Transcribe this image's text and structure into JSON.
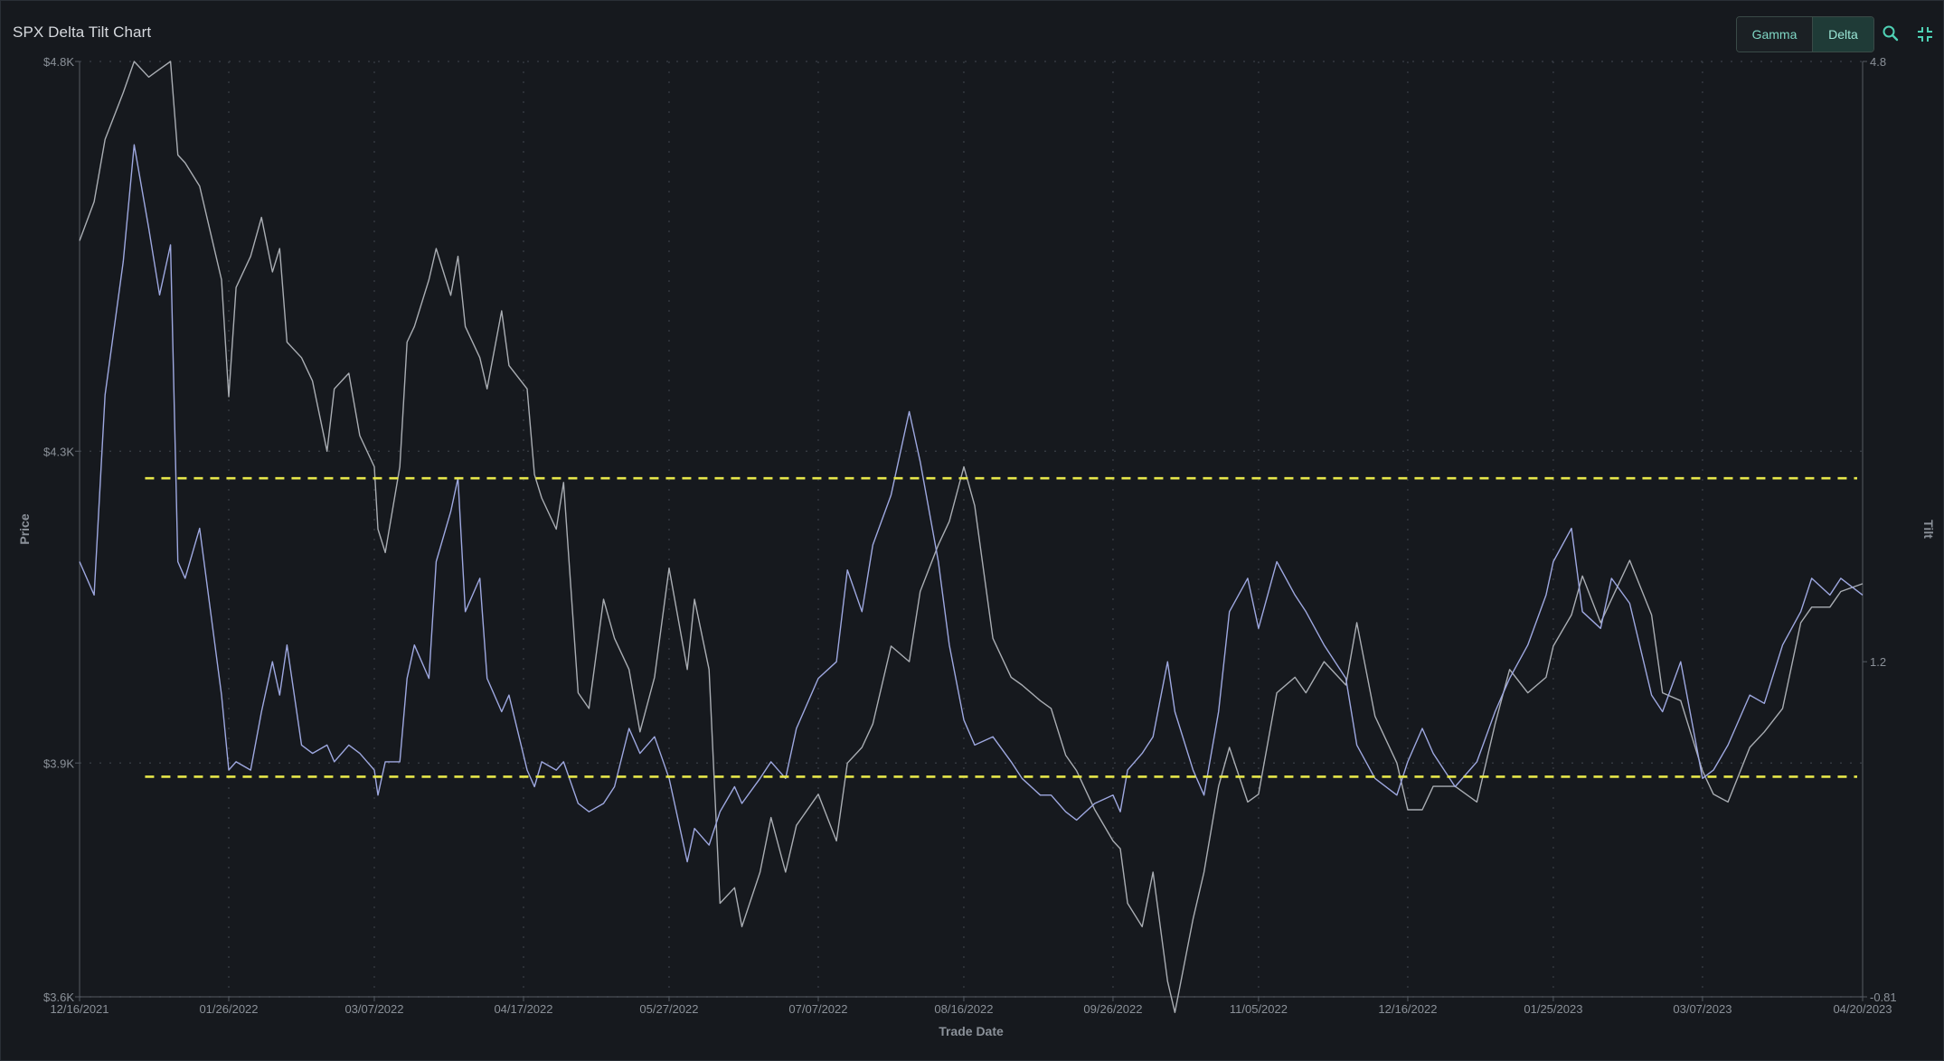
{
  "window": {
    "title": "SPX Delta Tilt Chart"
  },
  "toolbar": {
    "gamma_label": "Gamma",
    "delta_label": "Delta",
    "active": "Delta",
    "search_icon": "search-icon",
    "collapse_icon": "collapse-icon"
  },
  "colors": {
    "price_line": "#a9adb3",
    "tilt_line": "#9ea8e0",
    "threshold": "#e6e64a",
    "accent": "#4fd1b5"
  },
  "chart_data": {
    "type": "line",
    "title": "SPX Delta Tilt Chart",
    "xlabel": "Trade Date",
    "ylabel": "Price",
    "y2label": "Tilt",
    "x_tick_labels": [
      "12/16/2021",
      "01/26/2022",
      "03/07/2022",
      "04/17/2022",
      "05/27/2022",
      "07/07/2022",
      "08/16/2022",
      "09/26/2022",
      "11/05/2022",
      "12/16/2022",
      "01/25/2023",
      "03/07/2023",
      "04/20/2023"
    ],
    "y_tick_labels": [
      "$4.8K",
      "$4.3K",
      "$3.9K",
      "$3.6K"
    ],
    "y_tick_values": [
      4800,
      4300,
      3900,
      3600
    ],
    "y2_tick_labels": [
      "4.8",
      "1.2",
      "-0.81"
    ],
    "y2_tick_values": [
      4.8,
      1.2,
      -0.81
    ],
    "ylim": [
      3600,
      4800
    ],
    "y2lim": [
      -0.81,
      4.8
    ],
    "grid": true,
    "grid_style": "dotted",
    "thresholds": [
      {
        "axis": "y2",
        "value": 2.3,
        "style": "dashed"
      },
      {
        "axis": "y2",
        "value": 0.51,
        "style": "dashed"
      }
    ],
    "series": [
      {
        "axis": "y",
        "x": [
          "12/16/2021",
          "12/20/2021",
          "12/23/2021",
          "12/28/2021",
          "12/31/2021",
          "01/04/2022",
          "01/07/2022",
          "01/10/2022",
          "01/12/2022",
          "01/14/2022",
          "01/18/2022",
          "01/21/2022",
          "01/24/2022",
          "01/26/2022",
          "01/28/2022",
          "02/01/2022",
          "02/04/2022",
          "02/07/2022",
          "02/09/2022",
          "02/11/2022",
          "02/15/2022",
          "02/18/2022",
          "02/22/2022",
          "02/24/2022",
          "02/28/2022",
          "03/03/2022",
          "03/07/2022",
          "03/08/2022",
          "03/10/2022",
          "03/14/2022",
          "03/16/2022",
          "03/18/2022",
          "03/22/2022",
          "03/24/2022",
          "03/28/2022",
          "03/30/2022",
          "04/01/2022",
          "04/05/2022",
          "04/07/2022",
          "04/11/2022",
          "04/13/2022",
          "04/18/2022",
          "04/20/2022",
          "04/22/2022",
          "04/26/2022",
          "04/28/2022",
          "05/02/2022",
          "05/05/2022",
          "05/09/2022",
          "05/12/2022",
          "05/16/2022",
          "05/19/2022",
          "05/23/2022",
          "05/27/2022",
          "06/01/2022",
          "06/03/2022",
          "06/07/2022",
          "06/10/2022",
          "06/14/2022",
          "06/16/2022",
          "06/21/2022",
          "06/24/2022",
          "06/28/2022",
          "07/01/2022",
          "07/07/2022",
          "07/12/2022",
          "07/15/2022",
          "07/19/2022",
          "07/22/2022",
          "07/27/2022",
          "08/01/2022",
          "08/04/2022",
          "08/09/2022",
          "08/12/2022",
          "08/16/2022",
          "08/19/2022",
          "08/24/2022",
          "08/29/2022",
          "09/01/2022",
          "09/06/2022",
          "09/09/2022",
          "09/13/2022",
          "09/16/2022",
          "09/21/2022",
          "09/26/2022",
          "09/28/2022",
          "09/30/2022",
          "10/04/2022",
          "10/07/2022",
          "10/11/2022",
          "10/13/2022",
          "10/18/2022",
          "10/21/2022",
          "10/25/2022",
          "10/28/2022",
          "11/02/2022",
          "11/05/2022",
          "11/10/2022",
          "11/15/2022",
          "11/18/2022",
          "11/23/2022",
          "11/29/2022",
          "12/02/2022",
          "12/07/2022",
          "12/13/2022",
          "12/16/2022",
          "12/20/2022",
          "12/23/2022",
          "12/29/2022",
          "01/04/2023",
          "01/09/2023",
          "01/13/2023",
          "01/18/2023",
          "01/23/2023",
          "01/25/2023",
          "01/30/2023",
          "02/02/2023",
          "02/07/2023",
          "02/10/2023",
          "02/15/2023",
          "02/21/2023",
          "02/24/2023",
          "03/01/2023",
          "03/07/2023",
          "03/10/2023",
          "03/14/2023",
          "03/20/2023",
          "03/24/2023",
          "03/29/2023",
          "04/03/2023",
          "04/06/2023",
          "04/11/2023",
          "04/14/2023",
          "04/20/2023"
        ],
        "y": [
          4570,
          4620,
          4700,
          4760,
          4800,
          4780,
          4790,
          4800,
          4680,
          4670,
          4640,
          4580,
          4520,
          4370,
          4510,
          4550,
          4600,
          4530,
          4560,
          4440,
          4420,
          4390,
          4300,
          4380,
          4400,
          4320,
          4280,
          4200,
          4170,
          4280,
          4440,
          4460,
          4520,
          4560,
          4500,
          4550,
          4460,
          4420,
          4380,
          4480,
          4410,
          4380,
          4270,
          4240,
          4200,
          4260,
          3990,
          3970,
          4110,
          4060,
          4020,
          3940,
          4010,
          4150,
          4020,
          4110,
          4020,
          3720,
          3740,
          3690,
          3760,
          3830,
          3760,
          3820,
          3860,
          3800,
          3900,
          3920,
          3950,
          4050,
          4030,
          4120,
          4180,
          4210,
          4280,
          4230,
          4060,
          4010,
          4000,
          3980,
          3970,
          3910,
          3890,
          3840,
          3800,
          3790,
          3720,
          3690,
          3760,
          3620,
          3580,
          3700,
          3760,
          3870,
          3920,
          3850,
          3860,
          3990,
          4010,
          3990,
          4030,
          4000,
          4080,
          3960,
          3900,
          3840,
          3840,
          3870,
          3870,
          3850,
          3950,
          4020,
          3990,
          4010,
          4050,
          4090,
          4140,
          4080,
          4110,
          4160,
          4090,
          3990,
          3980,
          3890,
          3860,
          3850,
          3920,
          3940,
          3970,
          4080,
          4100,
          4100,
          4120,
          4130
        ]
      },
      {
        "axis": "y2",
        "x": [
          "12/16/2021",
          "12/20/2021",
          "12/23/2021",
          "12/28/2021",
          "12/31/2021",
          "01/04/2022",
          "01/07/2022",
          "01/10/2022",
          "01/12/2022",
          "01/14/2022",
          "01/18/2022",
          "01/21/2022",
          "01/24/2022",
          "01/26/2022",
          "01/28/2022",
          "02/01/2022",
          "02/04/2022",
          "02/07/2022",
          "02/09/2022",
          "02/11/2022",
          "02/15/2022",
          "02/18/2022",
          "02/22/2022",
          "02/24/2022",
          "02/28/2022",
          "03/03/2022",
          "03/07/2022",
          "03/08/2022",
          "03/10/2022",
          "03/14/2022",
          "03/16/2022",
          "03/18/2022",
          "03/22/2022",
          "03/24/2022",
          "03/28/2022",
          "03/30/2022",
          "04/01/2022",
          "04/05/2022",
          "04/07/2022",
          "04/11/2022",
          "04/13/2022",
          "04/18/2022",
          "04/20/2022",
          "04/22/2022",
          "04/26/2022",
          "04/28/2022",
          "05/02/2022",
          "05/05/2022",
          "05/09/2022",
          "05/12/2022",
          "05/16/2022",
          "05/19/2022",
          "05/23/2022",
          "05/27/2022",
          "06/01/2022",
          "06/03/2022",
          "06/07/2022",
          "06/10/2022",
          "06/14/2022",
          "06/16/2022",
          "06/21/2022",
          "06/24/2022",
          "06/28/2022",
          "07/01/2022",
          "07/07/2022",
          "07/12/2022",
          "07/15/2022",
          "07/19/2022",
          "07/22/2022",
          "07/27/2022",
          "08/01/2022",
          "08/04/2022",
          "08/09/2022",
          "08/12/2022",
          "08/16/2022",
          "08/19/2022",
          "08/24/2022",
          "08/29/2022",
          "09/01/2022",
          "09/06/2022",
          "09/09/2022",
          "09/13/2022",
          "09/16/2022",
          "09/21/2022",
          "09/26/2022",
          "09/28/2022",
          "09/30/2022",
          "10/04/2022",
          "10/07/2022",
          "10/11/2022",
          "10/13/2022",
          "10/18/2022",
          "10/21/2022",
          "10/25/2022",
          "10/28/2022",
          "11/02/2022",
          "11/05/2022",
          "11/10/2022",
          "11/15/2022",
          "11/18/2022",
          "11/23/2022",
          "11/29/2022",
          "12/02/2022",
          "12/07/2022",
          "12/13/2022",
          "12/16/2022",
          "12/20/2022",
          "12/23/2022",
          "12/29/2022",
          "01/04/2023",
          "01/09/2023",
          "01/13/2023",
          "01/18/2023",
          "01/23/2023",
          "01/25/2023",
          "01/30/2023",
          "02/02/2023",
          "02/07/2023",
          "02/10/2023",
          "02/15/2023",
          "02/21/2023",
          "02/24/2023",
          "03/01/2023",
          "03/07/2023",
          "03/10/2023",
          "03/14/2023",
          "03/20/2023",
          "03/24/2023",
          "03/29/2023",
          "04/03/2023",
          "04/06/2023",
          "04/11/2023",
          "04/14/2023",
          "04/20/2023"
        ],
        "y": [
          1.8,
          1.6,
          2.8,
          3.6,
          4.3,
          3.8,
          3.4,
          3.7,
          1.8,
          1.7,
          2.0,
          1.5,
          1.0,
          0.55,
          0.6,
          0.55,
          0.9,
          1.2,
          1.0,
          1.3,
          0.7,
          0.65,
          0.7,
          0.6,
          0.7,
          0.65,
          0.55,
          0.4,
          0.6,
          0.6,
          1.1,
          1.3,
          1.1,
          1.8,
          2.1,
          2.3,
          1.5,
          1.7,
          1.1,
          0.9,
          1.0,
          0.55,
          0.45,
          0.6,
          0.55,
          0.6,
          0.35,
          0.3,
          0.35,
          0.45,
          0.8,
          0.65,
          0.75,
          0.5,
          0.0,
          0.2,
          0.1,
          0.3,
          0.45,
          0.35,
          0.5,
          0.6,
          0.5,
          0.8,
          1.1,
          1.2,
          1.75,
          1.5,
          1.9,
          2.2,
          2.7,
          2.4,
          1.8,
          1.3,
          0.85,
          0.7,
          0.75,
          0.6,
          0.5,
          0.4,
          0.4,
          0.3,
          0.25,
          0.35,
          0.4,
          0.3,
          0.55,
          0.65,
          0.75,
          1.2,
          0.9,
          0.55,
          0.4,
          0.9,
          1.5,
          1.7,
          1.4,
          1.8,
          1.6,
          1.5,
          1.3,
          1.1,
          0.7,
          0.5,
          0.4,
          0.6,
          0.8,
          0.65,
          0.45,
          0.6,
          0.9,
          1.1,
          1.3,
          1.6,
          1.8,
          2.0,
          1.5,
          1.4,
          1.7,
          1.55,
          1.0,
          0.9,
          1.2,
          0.5,
          0.55,
          0.7,
          1.0,
          0.95,
          1.3,
          1.5,
          1.7,
          1.6,
          1.7,
          1.6
        ]
      }
    ]
  }
}
